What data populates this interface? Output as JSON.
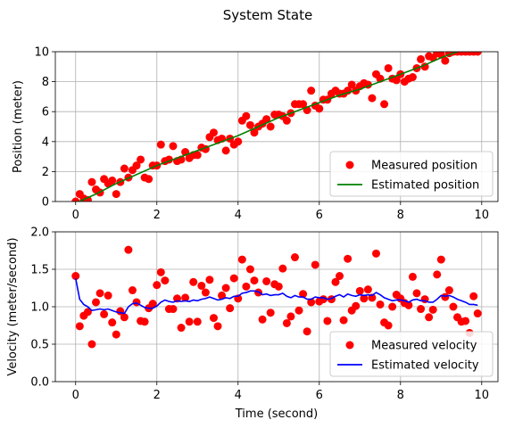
{
  "suptitle": "System State",
  "chart_data": [
    {
      "type": "line",
      "title": "",
      "xlabel": "",
      "ylabel": "Position (meter)",
      "xlim": [
        -0.5,
        10.4
      ],
      "ylim": [
        0,
        10
      ],
      "xticks": [
        0,
        2,
        4,
        6,
        8,
        10
      ],
      "yticks": [
        0,
        2,
        4,
        6,
        8,
        10
      ],
      "grid": true,
      "legend_position": "lower-right",
      "series": [
        {
          "name": "Measured position",
          "kind": "scatter",
          "color": "#ff0000",
          "x": [
            0.0,
            0.1,
            0.2,
            0.3,
            0.4,
            0.5,
            0.6,
            0.7,
            0.8,
            0.9,
            1.0,
            1.1,
            1.2,
            1.3,
            1.4,
            1.5,
            1.6,
            1.7,
            1.8,
            1.9,
            2.0,
            2.1,
            2.2,
            2.3,
            2.4,
            2.5,
            2.6,
            2.7,
            2.8,
            2.9,
            3.0,
            3.1,
            3.2,
            3.3,
            3.4,
            3.5,
            3.6,
            3.7,
            3.8,
            3.9,
            4.0,
            4.1,
            4.2,
            4.3,
            4.4,
            4.5,
            4.6,
            4.7,
            4.8,
            4.9,
            5.0,
            5.1,
            5.2,
            5.3,
            5.4,
            5.5,
            5.6,
            5.7,
            5.8,
            5.9,
            6.0,
            6.1,
            6.2,
            6.3,
            6.4,
            6.5,
            6.6,
            6.7,
            6.8,
            6.9,
            7.0,
            7.1,
            7.2,
            7.3,
            7.4,
            7.5,
            7.6,
            7.7,
            7.8,
            7.9,
            8.0,
            8.1,
            8.2,
            8.3,
            8.4,
            8.5,
            8.6,
            8.7,
            8.8,
            8.9,
            9.0,
            9.1,
            9.2,
            9.3,
            9.4,
            9.5,
            9.6,
            9.7,
            9.8,
            9.9
          ],
          "values": [
            0.0,
            0.5,
            0.2,
            0.1,
            1.3,
            0.8,
            0.6,
            1.5,
            1.2,
            1.4,
            0.5,
            1.3,
            2.2,
            1.6,
            2.1,
            2.4,
            2.8,
            1.6,
            1.5,
            2.4,
            2.4,
            3.8,
            2.7,
            2.8,
            3.7,
            2.7,
            2.8,
            3.3,
            2.9,
            3.1,
            3.1,
            3.6,
            3.5,
            4.3,
            4.6,
            4.1,
            4.2,
            3.4,
            4.2,
            3.8,
            4.0,
            5.4,
            5.7,
            5.1,
            4.6,
            5.0,
            5.2,
            5.5,
            5.0,
            5.8,
            5.8,
            5.7,
            5.4,
            5.9,
            6.5,
            6.5,
            6.5,
            6.1,
            7.4,
            6.4,
            6.2,
            6.8,
            6.8,
            7.2,
            7.4,
            7.2,
            7.2,
            7.4,
            7.8,
            7.4,
            7.7,
            7.9,
            7.8,
            6.9,
            8.5,
            8.2,
            6.5,
            8.9,
            8.2,
            8.1,
            8.5,
            8.0,
            8.2,
            8.3,
            8.9,
            9.5,
            9.0,
            9.7,
            9.6,
            9.9,
            9.8,
            9.4,
            9.9,
            10.0,
            10.0,
            10.0,
            10.0,
            10.0,
            10.0,
            10.0
          ]
        },
        {
          "name": "Estimated position",
          "kind": "line",
          "color": "#008000",
          "x": [
            0.0,
            0.5,
            1.0,
            1.5,
            2.0,
            2.5,
            3.0,
            3.5,
            4.0,
            4.5,
            5.0,
            5.5,
            6.0,
            6.5,
            7.0,
            7.5,
            8.0,
            8.5,
            9.0,
            9.5,
            10.0
          ],
          "values": [
            -0.1,
            0.5,
            1.2,
            1.8,
            2.4,
            2.9,
            3.4,
            3.9,
            4.4,
            5.0,
            5.6,
            6.1,
            6.6,
            7.1,
            7.5,
            8.0,
            8.5,
            9.0,
            9.6,
            10.1,
            10.6
          ]
        }
      ]
    },
    {
      "type": "line",
      "title": "",
      "xlabel": "Time (second)",
      "ylabel": "Velocity (meter/second)",
      "xlim": [
        -0.5,
        10.4
      ],
      "ylim": [
        0,
        2
      ],
      "xticks": [
        0,
        2,
        4,
        6,
        8,
        10
      ],
      "yticks": [
        0.0,
        0.5,
        1.0,
        1.5,
        2.0
      ],
      "ytick_labels": [
        "0.0",
        "0.5",
        "1.0",
        "1.5",
        "2.0"
      ],
      "grid": true,
      "legend_position": "lower-right",
      "series": [
        {
          "name": "Measured velocity",
          "kind": "scatter",
          "color": "#ff0000",
          "x": [
            0.0,
            0.1,
            0.2,
            0.3,
            0.4,
            0.5,
            0.6,
            0.7,
            0.8,
            0.9,
            1.0,
            1.1,
            1.2,
            1.3,
            1.4,
            1.5,
            1.6,
            1.7,
            1.8,
            1.9,
            2.0,
            2.1,
            2.2,
            2.3,
            2.4,
            2.5,
            2.6,
            2.7,
            2.8,
            2.9,
            3.0,
            3.1,
            3.2,
            3.3,
            3.4,
            3.5,
            3.6,
            3.7,
            3.8,
            3.9,
            4.0,
            4.1,
            4.2,
            4.3,
            4.4,
            4.5,
            4.6,
            4.7,
            4.8,
            4.9,
            5.0,
            5.1,
            5.2,
            5.3,
            5.4,
            5.5,
            5.6,
            5.7,
            5.8,
            5.9,
            6.0,
            6.1,
            6.2,
            6.3,
            6.4,
            6.5,
            6.6,
            6.7,
            6.8,
            6.9,
            7.0,
            7.1,
            7.2,
            7.3,
            7.4,
            7.5,
            7.6,
            7.7,
            7.8,
            7.9,
            8.0,
            8.1,
            8.2,
            8.3,
            8.4,
            8.5,
            8.6,
            8.7,
            8.8,
            8.9,
            9.0,
            9.1,
            9.2,
            9.3,
            9.4,
            9.5,
            9.6,
            9.7,
            9.8,
            9.9
          ],
          "values": [
            1.41,
            0.74,
            0.88,
            0.93,
            0.5,
            1.06,
            1.18,
            0.9,
            1.15,
            0.79,
            0.63,
            0.94,
            0.86,
            1.76,
            1.22,
            1.06,
            0.81,
            0.8,
            0.98,
            1.04,
            1.29,
            1.46,
            1.35,
            0.97,
            0.97,
            1.11,
            0.72,
            1.12,
            0.8,
            1.33,
            0.8,
            1.28,
            1.19,
            1.36,
            0.85,
            0.74,
            1.15,
            1.25,
            0.98,
            1.38,
            1.11,
            1.63,
            1.27,
            1.5,
            1.35,
            1.19,
            0.83,
            1.34,
            0.92,
            1.3,
            1.27,
            1.51,
            0.78,
            0.87,
            1.66,
            0.95,
            1.17,
            0.67,
            1.06,
            1.56,
            1.07,
            1.1,
            0.81,
            1.1,
            1.33,
            1.41,
            0.82,
            1.64,
            0.95,
            1.01,
            1.21,
            1.11,
            1.23,
            1.12,
            1.71,
            1.03,
            0.79,
            0.75,
            1.0,
            1.16,
            1.11,
            1.05,
            1.02,
            1.4,
            1.18,
            0.97,
            1.1,
            0.86,
            0.96,
            1.43,
            1.63,
            1.13,
            1.22,
            1.0,
            0.86,
            0.8,
            0.81,
            0.65,
            1.14,
            0.91
          ]
        },
        {
          "name": "Estimated velocity",
          "kind": "line",
          "color": "#0000ff",
          "x": [
            0.0,
            0.1,
            0.2,
            0.3,
            0.4,
            0.5,
            0.6,
            0.7,
            0.8,
            0.9,
            1.0,
            1.1,
            1.2,
            1.3,
            1.4,
            1.5,
            1.6,
            1.7,
            1.8,
            1.9,
            2.0,
            2.1,
            2.2,
            2.3,
            2.4,
            2.5,
            2.6,
            2.7,
            2.8,
            2.9,
            3.0,
            3.1,
            3.2,
            3.3,
            3.4,
            3.5,
            3.6,
            3.7,
            3.8,
            3.9,
            4.0,
            4.1,
            4.2,
            4.3,
            4.4,
            4.5,
            4.6,
            4.7,
            4.8,
            4.9,
            5.0,
            5.1,
            5.2,
            5.3,
            5.4,
            5.5,
            5.6,
            5.7,
            5.8,
            5.9,
            6.0,
            6.1,
            6.2,
            6.3,
            6.4,
            6.5,
            6.6,
            6.7,
            6.8,
            6.9,
            7.0,
            7.1,
            7.2,
            7.3,
            7.4,
            7.5,
            7.6,
            7.7,
            7.8,
            7.9,
            8.0,
            8.1,
            8.2,
            8.3,
            8.4,
            8.5,
            8.6,
            8.7,
            8.8,
            8.9,
            9.0,
            9.1,
            9.2,
            9.3,
            9.4,
            9.5,
            9.6,
            9.7,
            9.8,
            9.9
          ],
          "values": [
            1.38,
            1.1,
            1.03,
            1.0,
            0.95,
            0.96,
            0.97,
            0.96,
            0.97,
            0.95,
            0.93,
            0.92,
            0.91,
            1.0,
            1.04,
            1.05,
            1.02,
            0.99,
            0.98,
            0.98,
            1.01,
            1.06,
            1.09,
            1.07,
            1.06,
            1.08,
            1.07,
            1.08,
            1.07,
            1.09,
            1.08,
            1.1,
            1.11,
            1.13,
            1.11,
            1.09,
            1.1,
            1.12,
            1.11,
            1.14,
            1.14,
            1.18,
            1.19,
            1.21,
            1.21,
            1.2,
            1.16,
            1.17,
            1.15,
            1.16,
            1.16,
            1.18,
            1.14,
            1.12,
            1.15,
            1.13,
            1.13,
            1.1,
            1.1,
            1.13,
            1.12,
            1.12,
            1.1,
            1.11,
            1.14,
            1.16,
            1.13,
            1.17,
            1.15,
            1.14,
            1.16,
            1.15,
            1.16,
            1.15,
            1.19,
            1.16,
            1.12,
            1.1,
            1.08,
            1.09,
            1.09,
            1.08,
            1.06,
            1.09,
            1.1,
            1.08,
            1.08,
            1.06,
            1.06,
            1.1,
            1.15,
            1.14,
            1.15,
            1.13,
            1.1,
            1.08,
            1.06,
            1.03,
            1.03,
            1.02
          ]
        }
      ]
    }
  ]
}
